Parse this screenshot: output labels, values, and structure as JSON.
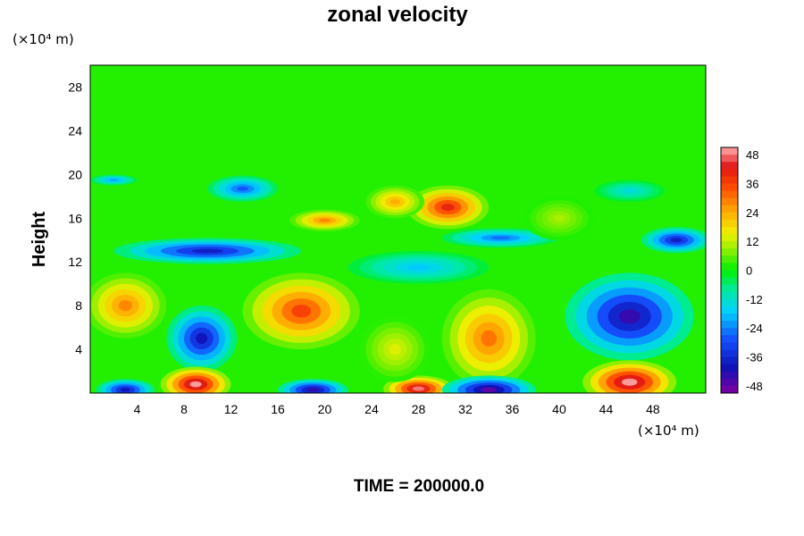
{
  "chart_data": {
    "type": "heatmap",
    "title": "zonal velocity",
    "ylabel": "Height",
    "xlabel": "",
    "y_unit": "(×10⁴ m)",
    "x_unit": "(×10⁴ m)",
    "footer": "TIME = 200000.0",
    "xlim": [
      0,
      52.5
    ],
    "ylim": [
      0,
      30
    ],
    "x_ticks": [
      "4",
      "8",
      "12",
      "16",
      "20",
      "24",
      "28",
      "32",
      "36",
      "40",
      "44",
      "48"
    ],
    "y_ticks": [
      "4",
      "8",
      "12",
      "16",
      "20",
      "24",
      "28"
    ],
    "colorbar": {
      "range": [
        -51,
        51
      ],
      "ticks": [
        "48",
        "36",
        "24",
        "12",
        "0",
        "-12",
        "-24",
        "-36",
        "-48"
      ],
      "levels": 34
    },
    "features": [
      {
        "x": 9.5,
        "y": 5,
        "value": -40,
        "rx": 3,
        "ry": 3
      },
      {
        "x": 34,
        "y": 5,
        "value": 30,
        "rx": 4,
        "ry": 4.5
      },
      {
        "x": 46,
        "y": 7,
        "value": -44,
        "rx": 5.5,
        "ry": 4
      },
      {
        "x": 3,
        "y": 8,
        "value": 28,
        "rx": 3.5,
        "ry": 3
      },
      {
        "x": 18,
        "y": 7.5,
        "value": 36,
        "rx": 5,
        "ry": 3.5
      },
      {
        "x": 9,
        "y": 0.8,
        "value": 50,
        "rx": 3,
        "ry": 1.6
      },
      {
        "x": 28,
        "y": 0.4,
        "value": 48,
        "rx": 3,
        "ry": 1.2
      },
      {
        "x": 46,
        "y": 1,
        "value": 50,
        "rx": 4,
        "ry": 2
      },
      {
        "x": 34,
        "y": 0.3,
        "value": -48,
        "rx": 4,
        "ry": 1.3
      },
      {
        "x": 19,
        "y": 0.3,
        "value": -44,
        "rx": 3,
        "ry": 1
      },
      {
        "x": 3,
        "y": 0.3,
        "value": -40,
        "rx": 2.5,
        "ry": 1
      },
      {
        "x": 30.5,
        "y": 17,
        "value": 40,
        "rx": 3.5,
        "ry": 2
      },
      {
        "x": 20,
        "y": 15.8,
        "value": 28,
        "rx": 3,
        "ry": 1
      },
      {
        "x": 26,
        "y": 17.5,
        "value": 24,
        "rx": 2.5,
        "ry": 1.5
      },
      {
        "x": 10,
        "y": 13,
        "value": -38,
        "rx": 8,
        "ry": 1.2
      },
      {
        "x": 35,
        "y": 14.2,
        "value": -26,
        "rx": 5,
        "ry": 0.9
      },
      {
        "x": 50,
        "y": 14,
        "value": -38,
        "rx": 3,
        "ry": 1.2
      },
      {
        "x": 13,
        "y": 18.7,
        "value": -28,
        "rx": 3,
        "ry": 1.2
      },
      {
        "x": 2,
        "y": 19.5,
        "value": -22,
        "rx": 2,
        "ry": 0.5
      },
      {
        "x": 46,
        "y": 18.5,
        "value": -14,
        "rx": 3,
        "ry": 1
      },
      {
        "x": 28,
        "y": 11.5,
        "value": -18,
        "rx": 6,
        "ry": 1.5
      },
      {
        "x": 26,
        "y": 4,
        "value": 14,
        "rx": 3,
        "ry": 3
      },
      {
        "x": 40,
        "y": 16,
        "value": 10,
        "rx": 3,
        "ry": 2
      }
    ]
  }
}
